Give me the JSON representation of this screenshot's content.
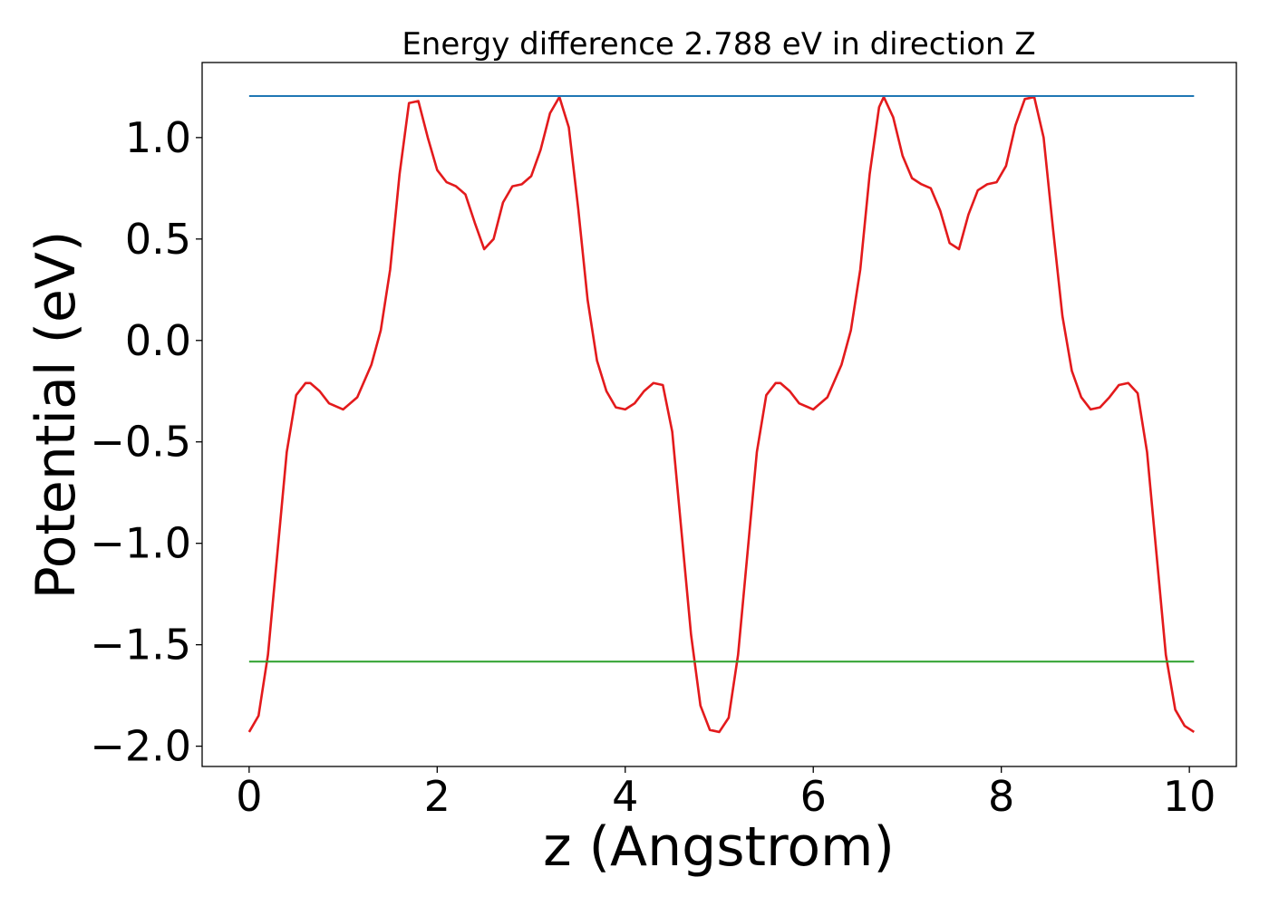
{
  "chart_data": {
    "type": "line",
    "title": "Energy difference 2.788 eV in direction Z",
    "xlabel": "z (Angstrom)",
    "ylabel": "Potential (eV)",
    "xlim": [
      -0.5,
      10.5
    ],
    "ylim": [
      -2.1,
      1.37
    ],
    "grid": false,
    "x_ticks": [
      0,
      2,
      4,
      6,
      8,
      10
    ],
    "y_ticks": [
      1.0,
      0.5,
      0.0,
      -0.5,
      -1.0,
      -1.5,
      -2.0
    ],
    "x_tick_labels": [
      "0",
      "2",
      "4",
      "6",
      "8",
      "10"
    ],
    "y_tick_labels": [
      "1.0",
      "0.5",
      "0.0",
      "−0.5",
      "−1.0",
      "−1.5",
      "−2.0"
    ],
    "series": [
      {
        "color": "#e31a1c",
        "x": [
          0.0,
          0.1,
          0.2,
          0.3,
          0.4,
          0.5,
          0.6,
          0.65,
          0.75,
          0.85,
          1.0,
          1.15,
          1.3,
          1.4,
          1.5,
          1.6,
          1.7,
          1.8,
          1.9,
          2.0,
          2.1,
          2.2,
          2.3,
          2.4,
          2.5,
          2.6,
          2.7,
          2.8,
          2.9,
          3.0,
          3.1,
          3.2,
          3.3,
          3.4,
          3.5,
          3.6,
          3.7,
          3.8,
          3.9,
          4.0,
          4.1,
          4.2,
          4.3,
          4.4,
          4.5,
          4.6,
          4.7,
          4.8,
          4.9,
          5.0,
          5.1,
          5.2,
          5.3,
          5.4,
          5.5,
          5.6,
          5.65,
          5.75,
          5.85,
          6.0,
          6.15,
          6.3,
          6.4,
          6.5,
          6.6,
          6.7,
          6.75,
          6.85,
          6.95,
          7.05,
          7.15,
          7.25,
          7.35,
          7.45,
          7.55,
          7.65,
          7.75,
          7.85,
          7.95,
          8.05,
          8.15,
          8.25,
          8.35,
          8.45,
          8.55,
          8.65,
          8.75,
          8.85,
          8.95,
          9.05,
          9.15,
          9.25,
          9.35,
          9.45,
          9.55,
          9.65,
          9.75,
          9.85,
          9.95,
          10.05
        ],
        "y": [
          -1.93,
          -1.85,
          -1.55,
          -1.05,
          -0.55,
          -0.27,
          -0.21,
          -0.21,
          -0.25,
          -0.31,
          -0.34,
          -0.28,
          -0.12,
          0.05,
          0.35,
          0.82,
          1.17,
          1.18,
          1.0,
          0.84,
          0.78,
          0.76,
          0.72,
          0.58,
          0.45,
          0.5,
          0.68,
          0.76,
          0.77,
          0.81,
          0.94,
          1.12,
          1.2,
          1.05,
          0.65,
          0.2,
          -0.1,
          -0.25,
          -0.33,
          -0.34,
          -0.31,
          -0.25,
          -0.21,
          -0.22,
          -0.45,
          -0.95,
          -1.45,
          -1.8,
          -1.92,
          -1.93,
          -1.86,
          -1.55,
          -1.05,
          -0.55,
          -0.27,
          -0.21,
          -0.21,
          -0.25,
          -0.31,
          -0.34,
          -0.28,
          -0.12,
          0.05,
          0.35,
          0.82,
          1.15,
          1.2,
          1.1,
          0.91,
          0.8,
          0.77,
          0.75,
          0.64,
          0.48,
          0.45,
          0.62,
          0.74,
          0.77,
          0.78,
          0.86,
          1.06,
          1.19,
          1.2,
          1.0,
          0.55,
          0.12,
          -0.15,
          -0.28,
          -0.34,
          -0.33,
          -0.28,
          -0.22,
          -0.21,
          -0.26,
          -0.55,
          -1.05,
          -1.55,
          -1.82,
          -1.9,
          -1.93
        ]
      },
      {
        "color": "#1f77b4",
        "x": [
          0,
          10.05
        ],
        "y": [
          1.205,
          1.205
        ]
      },
      {
        "color": "#2ca02c",
        "x": [
          0,
          10.05
        ],
        "y": [
          -1.583,
          -1.583
        ]
      }
    ]
  }
}
